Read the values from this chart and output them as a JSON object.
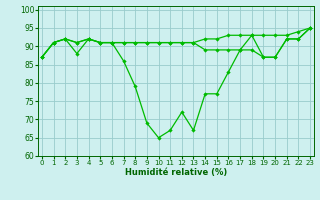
{
  "x": [
    0,
    1,
    2,
    3,
    4,
    5,
    6,
    7,
    8,
    9,
    10,
    11,
    12,
    13,
    14,
    15,
    16,
    17,
    18,
    19,
    20,
    21,
    22,
    23
  ],
  "line1": [
    87,
    91,
    92,
    88,
    92,
    91,
    91,
    86,
    79,
    69,
    65,
    67,
    72,
    67,
    77,
    77,
    83,
    89,
    93,
    87,
    87,
    92,
    92,
    95
  ],
  "line2": [
    87,
    91,
    92,
    91,
    92,
    91,
    91,
    91,
    91,
    91,
    91,
    91,
    91,
    91,
    92,
    92,
    93,
    93,
    93,
    93,
    93,
    93,
    94,
    95
  ],
  "line3": [
    87,
    91,
    92,
    91,
    92,
    91,
    91,
    91,
    91,
    91,
    91,
    91,
    91,
    91,
    89,
    89,
    89,
    89,
    89,
    87,
    87,
    92,
    92,
    95
  ],
  "xlabel": "Humidité relative (%)",
  "ylim": [
    60,
    101
  ],
  "yticks": [
    60,
    65,
    70,
    75,
    80,
    85,
    90,
    95,
    100
  ],
  "xticks": [
    0,
    1,
    2,
    3,
    4,
    5,
    6,
    7,
    8,
    9,
    10,
    11,
    12,
    13,
    14,
    15,
    16,
    17,
    18,
    19,
    20,
    21,
    22,
    23
  ],
  "bg_color": "#cef0ef",
  "grid_color": "#99cccc",
  "line_color": "#00bb00",
  "marker": "D",
  "markersize": 2.2,
  "linewidth": 0.9
}
